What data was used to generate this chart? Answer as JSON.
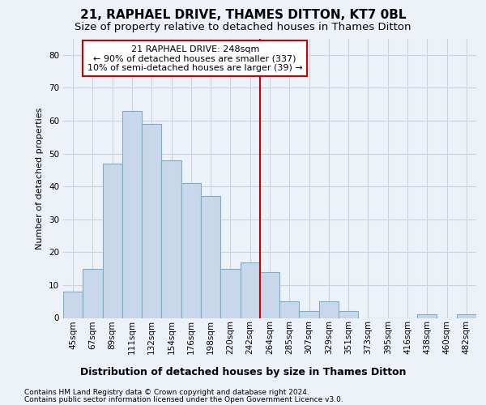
{
  "title": "21, RAPHAEL DRIVE, THAMES DITTON, KT7 0BL",
  "subtitle": "Size of property relative to detached houses in Thames Ditton",
  "xlabel": "Distribution of detached houses by size in Thames Ditton",
  "ylabel": "Number of detached properties",
  "footer_line1": "Contains HM Land Registry data © Crown copyright and database right 2024.",
  "footer_line2": "Contains public sector information licensed under the Open Government Licence v3.0.",
  "bar_labels": [
    "45sqm",
    "67sqm",
    "89sqm",
    "111sqm",
    "132sqm",
    "154sqm",
    "176sqm",
    "198sqm",
    "220sqm",
    "242sqm",
    "264sqm",
    "285sqm",
    "307sqm",
    "329sqm",
    "351sqm",
    "373sqm",
    "395sqm",
    "416sqm",
    "438sqm",
    "460sqm",
    "482sqm"
  ],
  "bar_values": [
    8,
    15,
    47,
    63,
    59,
    48,
    41,
    37,
    15,
    17,
    14,
    5,
    2,
    5,
    2,
    0,
    0,
    0,
    1,
    0,
    1
  ],
  "bar_color": "#c8d8ea",
  "bar_edgecolor": "#7aafc8",
  "marker_line_color": "#cc0000",
  "annotation_text": "21 RAPHAEL DRIVE: 248sqm\n← 90% of detached houses are smaller (337)\n10% of semi-detached houses are larger (39) →",
  "annotation_box_color": "#ffffff",
  "annotation_box_edgecolor": "#cc0000",
  "ylim": [
    0,
    85
  ],
  "yticks": [
    0,
    10,
    20,
    30,
    40,
    50,
    60,
    70,
    80
  ],
  "grid_color": "#c8d4e4",
  "bg_color": "#edf1f8",
  "title_fontsize": 11,
  "subtitle_fontsize": 9.5,
  "xlabel_fontsize": 9,
  "ylabel_fontsize": 8,
  "tick_fontsize": 7.5,
  "footer_fontsize": 6.5,
  "annotation_fontsize": 8
}
